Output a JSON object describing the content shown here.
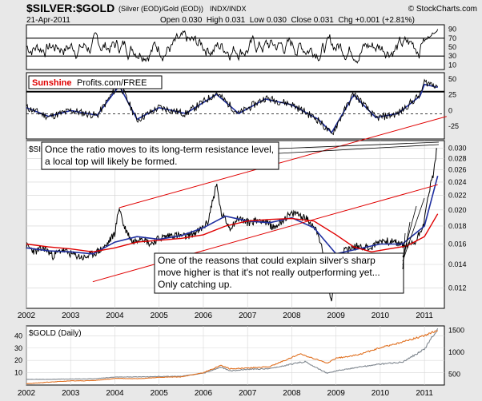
{
  "header": {
    "ticker": "$SILVER:$GOLD",
    "name": "(Silver (EOD)/Gold (EOD))",
    "exchange": "INDX/INDX",
    "source": "© StockCharts.com",
    "date": "21-Apr-2011",
    "ohlc": "Open 0.030  High 0.031  Low 0.030  Close 0.031  Chg +0.001 (+2.81%)"
  },
  "brand": {
    "sunshine": "Sunshine",
    "profits": "Profits.com/FREE"
  },
  "colors": {
    "price": "#000000",
    "ma_blue": "#1f2fa0",
    "ma_red": "#e00000",
    "trendline": "#e00000",
    "gold_orange": "#e07020",
    "gold_gray": "#808890",
    "panel_bg": "#ffffff",
    "page_bg": "#e8e8e8"
  },
  "annotations": {
    "top": "Once the ratio moves to its long-term resistance level, a local top will likely be formed.",
    "bottom": "One of the reasons that could explain silver's sharp move higher is that it's not really outperforming yet... Only catching up."
  },
  "chart_data": [
    {
      "type": "line",
      "panel": "rsi",
      "y_ticks": [
        90,
        70,
        50,
        30,
        10
      ],
      "ylim": [
        0,
        100
      ],
      "reference_lines": [
        70,
        30
      ]
    },
    {
      "type": "line",
      "panel": "oscillator",
      "y_ticks": [
        50,
        25,
        0,
        -25
      ],
      "ylim": [
        -45,
        60
      ],
      "reference_lines": [
        30,
        -5
      ]
    },
    {
      "type": "line",
      "panel": "main",
      "title_label": "$SI",
      "x_ticks": [
        "2002",
        "2003",
        "2004",
        "2005",
        "2006",
        "2007",
        "2008",
        "2009",
        "2010",
        "2011"
      ],
      "y_ticks": [
        0.03,
        0.028,
        0.026,
        0.024,
        0.022,
        0.02,
        0.018,
        0.016,
        0.014,
        0.012
      ],
      "ylim": [
        0.0105,
        0.0315
      ],
      "log_scale": true,
      "series": [
        {
          "x": [
            2002.0,
            2002.2,
            2002.4,
            2002.6,
            2002.8,
            2003.0,
            2003.3,
            2003.6,
            2003.8,
            2004.0,
            2004.1,
            2004.2,
            2004.4,
            2004.6,
            2004.8,
            2005.0,
            2005.3,
            2005.6,
            2005.9,
            2006.1,
            2006.3,
            2006.4,
            2006.6,
            2006.8,
            2007.0,
            2007.3,
            2007.6,
            2007.9,
            2008.1,
            2008.3,
            2008.5,
            2008.6,
            2008.7,
            2008.8,
            2008.9,
            2009.0,
            2009.2,
            2009.5,
            2009.8,
            2010.0,
            2010.3,
            2010.6,
            2010.8,
            2011.0,
            2011.1,
            2011.2,
            2011.3
          ],
          "values": [
            0.0158,
            0.0152,
            0.0156,
            0.0148,
            0.0154,
            0.015,
            0.0146,
            0.0152,
            0.0158,
            0.0172,
            0.0204,
            0.018,
            0.0162,
            0.0168,
            0.016,
            0.0166,
            0.017,
            0.0168,
            0.0174,
            0.0184,
            0.0236,
            0.0196,
            0.0178,
            0.019,
            0.0184,
            0.0188,
            0.0178,
            0.0192,
            0.0196,
            0.019,
            0.018,
            0.0172,
            0.015,
            0.012,
            0.0112,
            0.0138,
            0.0154,
            0.0158,
            0.0156,
            0.0164,
            0.0162,
            0.0158,
            0.0162,
            0.0186,
            0.0226,
            0.0252,
            0.031
          ]
        },
        {
          "x": [
            2002.0,
            2002.5,
            2003.0,
            2003.5,
            2004.0,
            2004.5,
            2005.0,
            2005.5,
            2006.0,
            2006.5,
            2007.0,
            2007.5,
            2008.0,
            2008.5,
            2009.0,
            2009.5,
            2010.0,
            2010.5,
            2011.0,
            2011.3
          ],
          "values": [
            0.0156,
            0.0153,
            0.0152,
            0.015,
            0.0162,
            0.0168,
            0.0165,
            0.0169,
            0.0178,
            0.0192,
            0.0186,
            0.0184,
            0.019,
            0.0178,
            0.015,
            0.0155,
            0.016,
            0.016,
            0.018,
            0.025
          ]
        },
        {
          "x": [
            2002.0,
            2002.5,
            2003.0,
            2003.5,
            2004.0,
            2004.5,
            2005.0,
            2005.5,
            2006.0,
            2006.5,
            2007.0,
            2007.5,
            2008.0,
            2008.5,
            2009.0,
            2009.4,
            2009.8,
            2010.2,
            2010.6,
            2011.0,
            2011.3
          ],
          "values": [
            0.016,
            0.0157,
            0.0155,
            0.0152,
            0.0156,
            0.0162,
            0.0164,
            0.0166,
            0.017,
            0.018,
            0.0186,
            0.0188,
            0.0189,
            0.0186,
            0.017,
            0.0157,
            0.0152,
            0.0155,
            0.0158,
            0.0168,
            0.0195
          ]
        }
      ],
      "trendlines": [
        {
          "x": [
            2003.5,
            2011.3
          ],
          "values": [
            0.0125,
            0.0236
          ]
        },
        {
          "x": [
            2004.1,
            2011.5
          ],
          "values": [
            0.0203,
            0.0369
          ]
        }
      ]
    },
    {
      "type": "line",
      "panel": "gold",
      "title_label": "$GOLD (Daily)",
      "x_ticks": [
        "2002",
        "2003",
        "2004",
        "2005",
        "2006",
        "2007",
        "2008",
        "2009",
        "2010",
        "2011"
      ],
      "y_ticks_left": [
        40,
        30,
        20,
        10
      ],
      "y_ticks_right": [
        1500,
        1000,
        500
      ],
      "ylim_left": [
        0,
        48
      ],
      "ylim_right": [
        250,
        1600
      ],
      "series": [
        {
          "name": "$GOLD",
          "x": [
            2002.0,
            2002.5,
            2003.0,
            2003.5,
            2004.0,
            2004.5,
            2005.0,
            2005.5,
            2006.0,
            2006.4,
            2006.6,
            2007.0,
            2007.5,
            2008.0,
            2008.2,
            2008.8,
            2009.0,
            2009.5,
            2010.0,
            2010.5,
            2011.0,
            2011.3
          ],
          "values": [
            280,
            315,
            345,
            350,
            400,
            395,
            425,
            435,
            530,
            700,
            620,
            640,
            670,
            880,
            960,
            750,
            860,
            940,
            1100,
            1230,
            1380,
            1500
          ]
        },
        {
          "x": [
            2002.0,
            2002.5,
            2003.0,
            2003.5,
            2004.0,
            2004.5,
            2005.0,
            2005.5,
            2006.0,
            2006.4,
            2006.6,
            2007.0,
            2007.5,
            2008.0,
            2008.3,
            2008.8,
            2009.0,
            2009.5,
            2010.0,
            2010.5,
            2011.0,
            2011.3
          ],
          "values": [
            4.6,
            4.6,
            4.9,
            5.0,
            6.4,
            6.6,
            6.9,
            7.1,
            9.5,
            14.5,
            11.5,
            12.8,
            13.2,
            17.0,
            19.0,
            9.5,
            11.5,
            14.5,
            17.0,
            18.5,
            29.0,
            46.0
          ]
        }
      ]
    }
  ]
}
